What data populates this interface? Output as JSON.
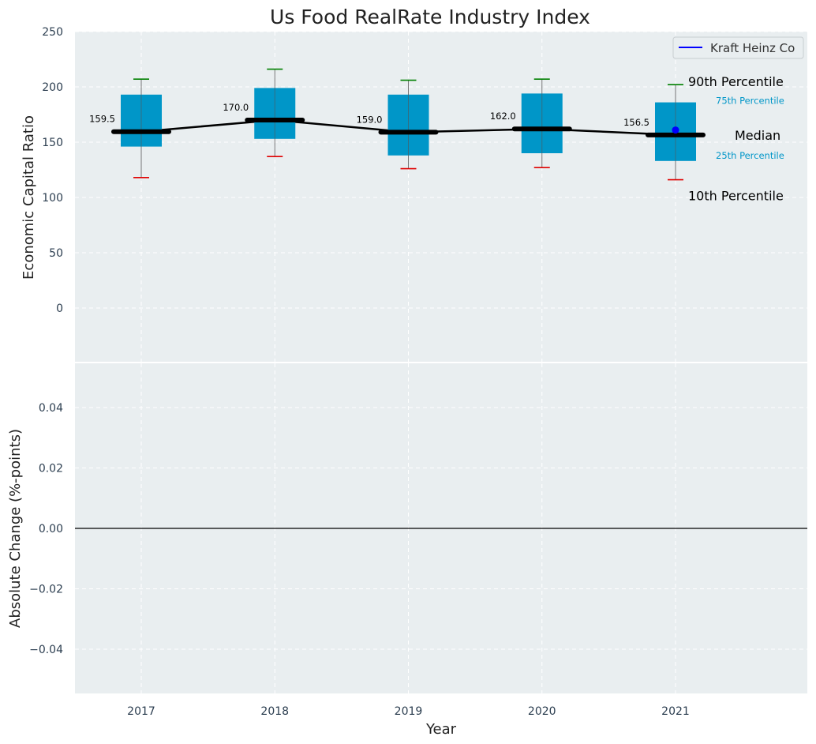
{
  "chart_data": [
    {
      "type": "box",
      "title": "Us Food RealRate Industry Index",
      "xlabel": "",
      "ylabel": "Economic Capital Ratio",
      "ylim": [
        -50,
        250
      ],
      "y_ticks": [
        "0",
        "50",
        "100",
        "150",
        "200",
        "250"
      ],
      "grid": true,
      "categories": [
        "2017",
        "2018",
        "2019",
        "2020",
        "2021"
      ],
      "boxes": [
        {
          "year": "2017",
          "p10": 118,
          "p25": 146,
          "median": 159.5,
          "p75": 193,
          "p90": 207,
          "median_label": "159.5"
        },
        {
          "year": "2018",
          "p10": 137,
          "p25": 153,
          "median": 170.0,
          "p75": 199,
          "p90": 216,
          "median_label": "170.0"
        },
        {
          "year": "2019",
          "p10": 126,
          "p25": 138,
          "median": 159.0,
          "p75": 193,
          "p90": 206,
          "median_label": "159.0"
        },
        {
          "year": "2020",
          "p10": 127,
          "p25": 140,
          "median": 162.0,
          "p75": 194,
          "p90": 207,
          "median_label": "162.0"
        },
        {
          "year": "2021",
          "p10": 116,
          "p25": 133,
          "median": 156.5,
          "p75": 186,
          "p90": 202,
          "median_label": "156.5"
        }
      ],
      "company_series": {
        "name": "Kraft Heinz Co",
        "year": "2021",
        "value": 161
      },
      "legend": {
        "position": "top-right",
        "label": "Kraft Heinz Co"
      },
      "annotations": {
        "p90": "90th Percentile",
        "p75": "75th Percentile",
        "median": "Median",
        "p25": "25th Percentile",
        "p10": "10th Percentile"
      }
    },
    {
      "type": "line",
      "title": "",
      "xlabel": "Year",
      "ylabel": "Absolute Change (%-points)",
      "ylim": [
        -0.055,
        0.055
      ],
      "y_ticks": [
        "−0.04",
        "−0.02",
        "0.00",
        "0.02",
        "0.04"
      ],
      "grid": true,
      "categories": [
        "2017",
        "2018",
        "2019",
        "2020",
        "2021"
      ],
      "series": []
    }
  ],
  "colors": {
    "background": "#e9eef0",
    "box": "#0096c8",
    "whisker_top": "#008000",
    "whisker_bottom": "#e00000",
    "median": "#000000",
    "company": "#0000ff",
    "axis_text": "#2c3e50",
    "annotation_blue": "#0096c8"
  }
}
